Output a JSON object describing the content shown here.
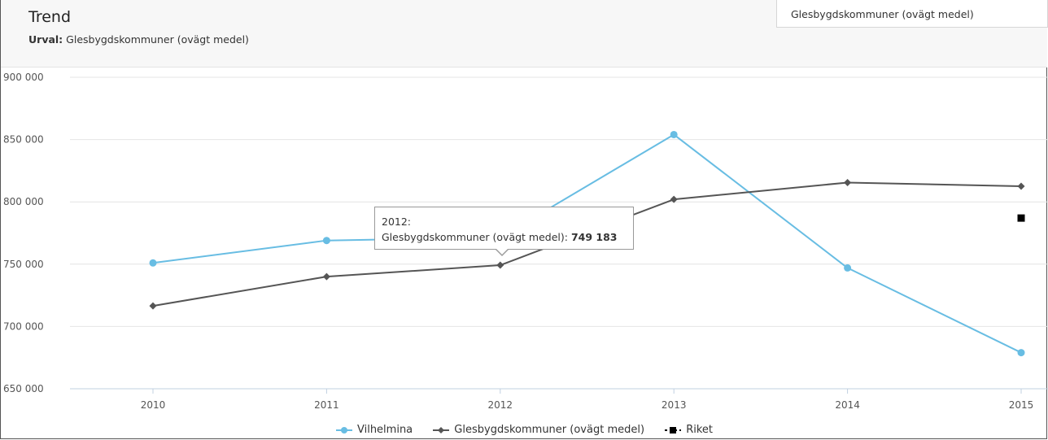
{
  "header": {
    "title": "Trend",
    "subtitle_label": "Urval:",
    "subtitle_value": "Glesbygdskommuner (ovägt medel)"
  },
  "selector": {
    "value": "Glesbygdskommuner (ovägt medel)"
  },
  "tooltip": {
    "year": "2012:",
    "series": "Glesbygdskommuner (ovägt medel):",
    "value": "749 183"
  },
  "chart_data": {
    "type": "line",
    "x": [
      "2010",
      "2011",
      "2012",
      "2013",
      "2014",
      "2015"
    ],
    "y_ticks": [
      "650 000",
      "700 000",
      "750 000",
      "800 000",
      "850 000",
      "900 000"
    ],
    "ylim": [
      650000,
      900000
    ],
    "grid": true,
    "legend_position": "bottom",
    "series": [
      {
        "name": "Vilhelmina",
        "color": "#68bde3",
        "marker": "circle",
        "values": [
          751000,
          769000,
          771500,
          854000,
          747000,
          679000
        ]
      },
      {
        "name": "Glesbygdskommuner (ovägt medel)",
        "color": "#555555",
        "marker": "diamond",
        "values": [
          716500,
          740000,
          749183,
          802000,
          815500,
          812500
        ]
      },
      {
        "name": "Riket",
        "color": "#000000",
        "marker": "square",
        "values": [
          null,
          null,
          null,
          null,
          null,
          787000
        ]
      }
    ]
  }
}
